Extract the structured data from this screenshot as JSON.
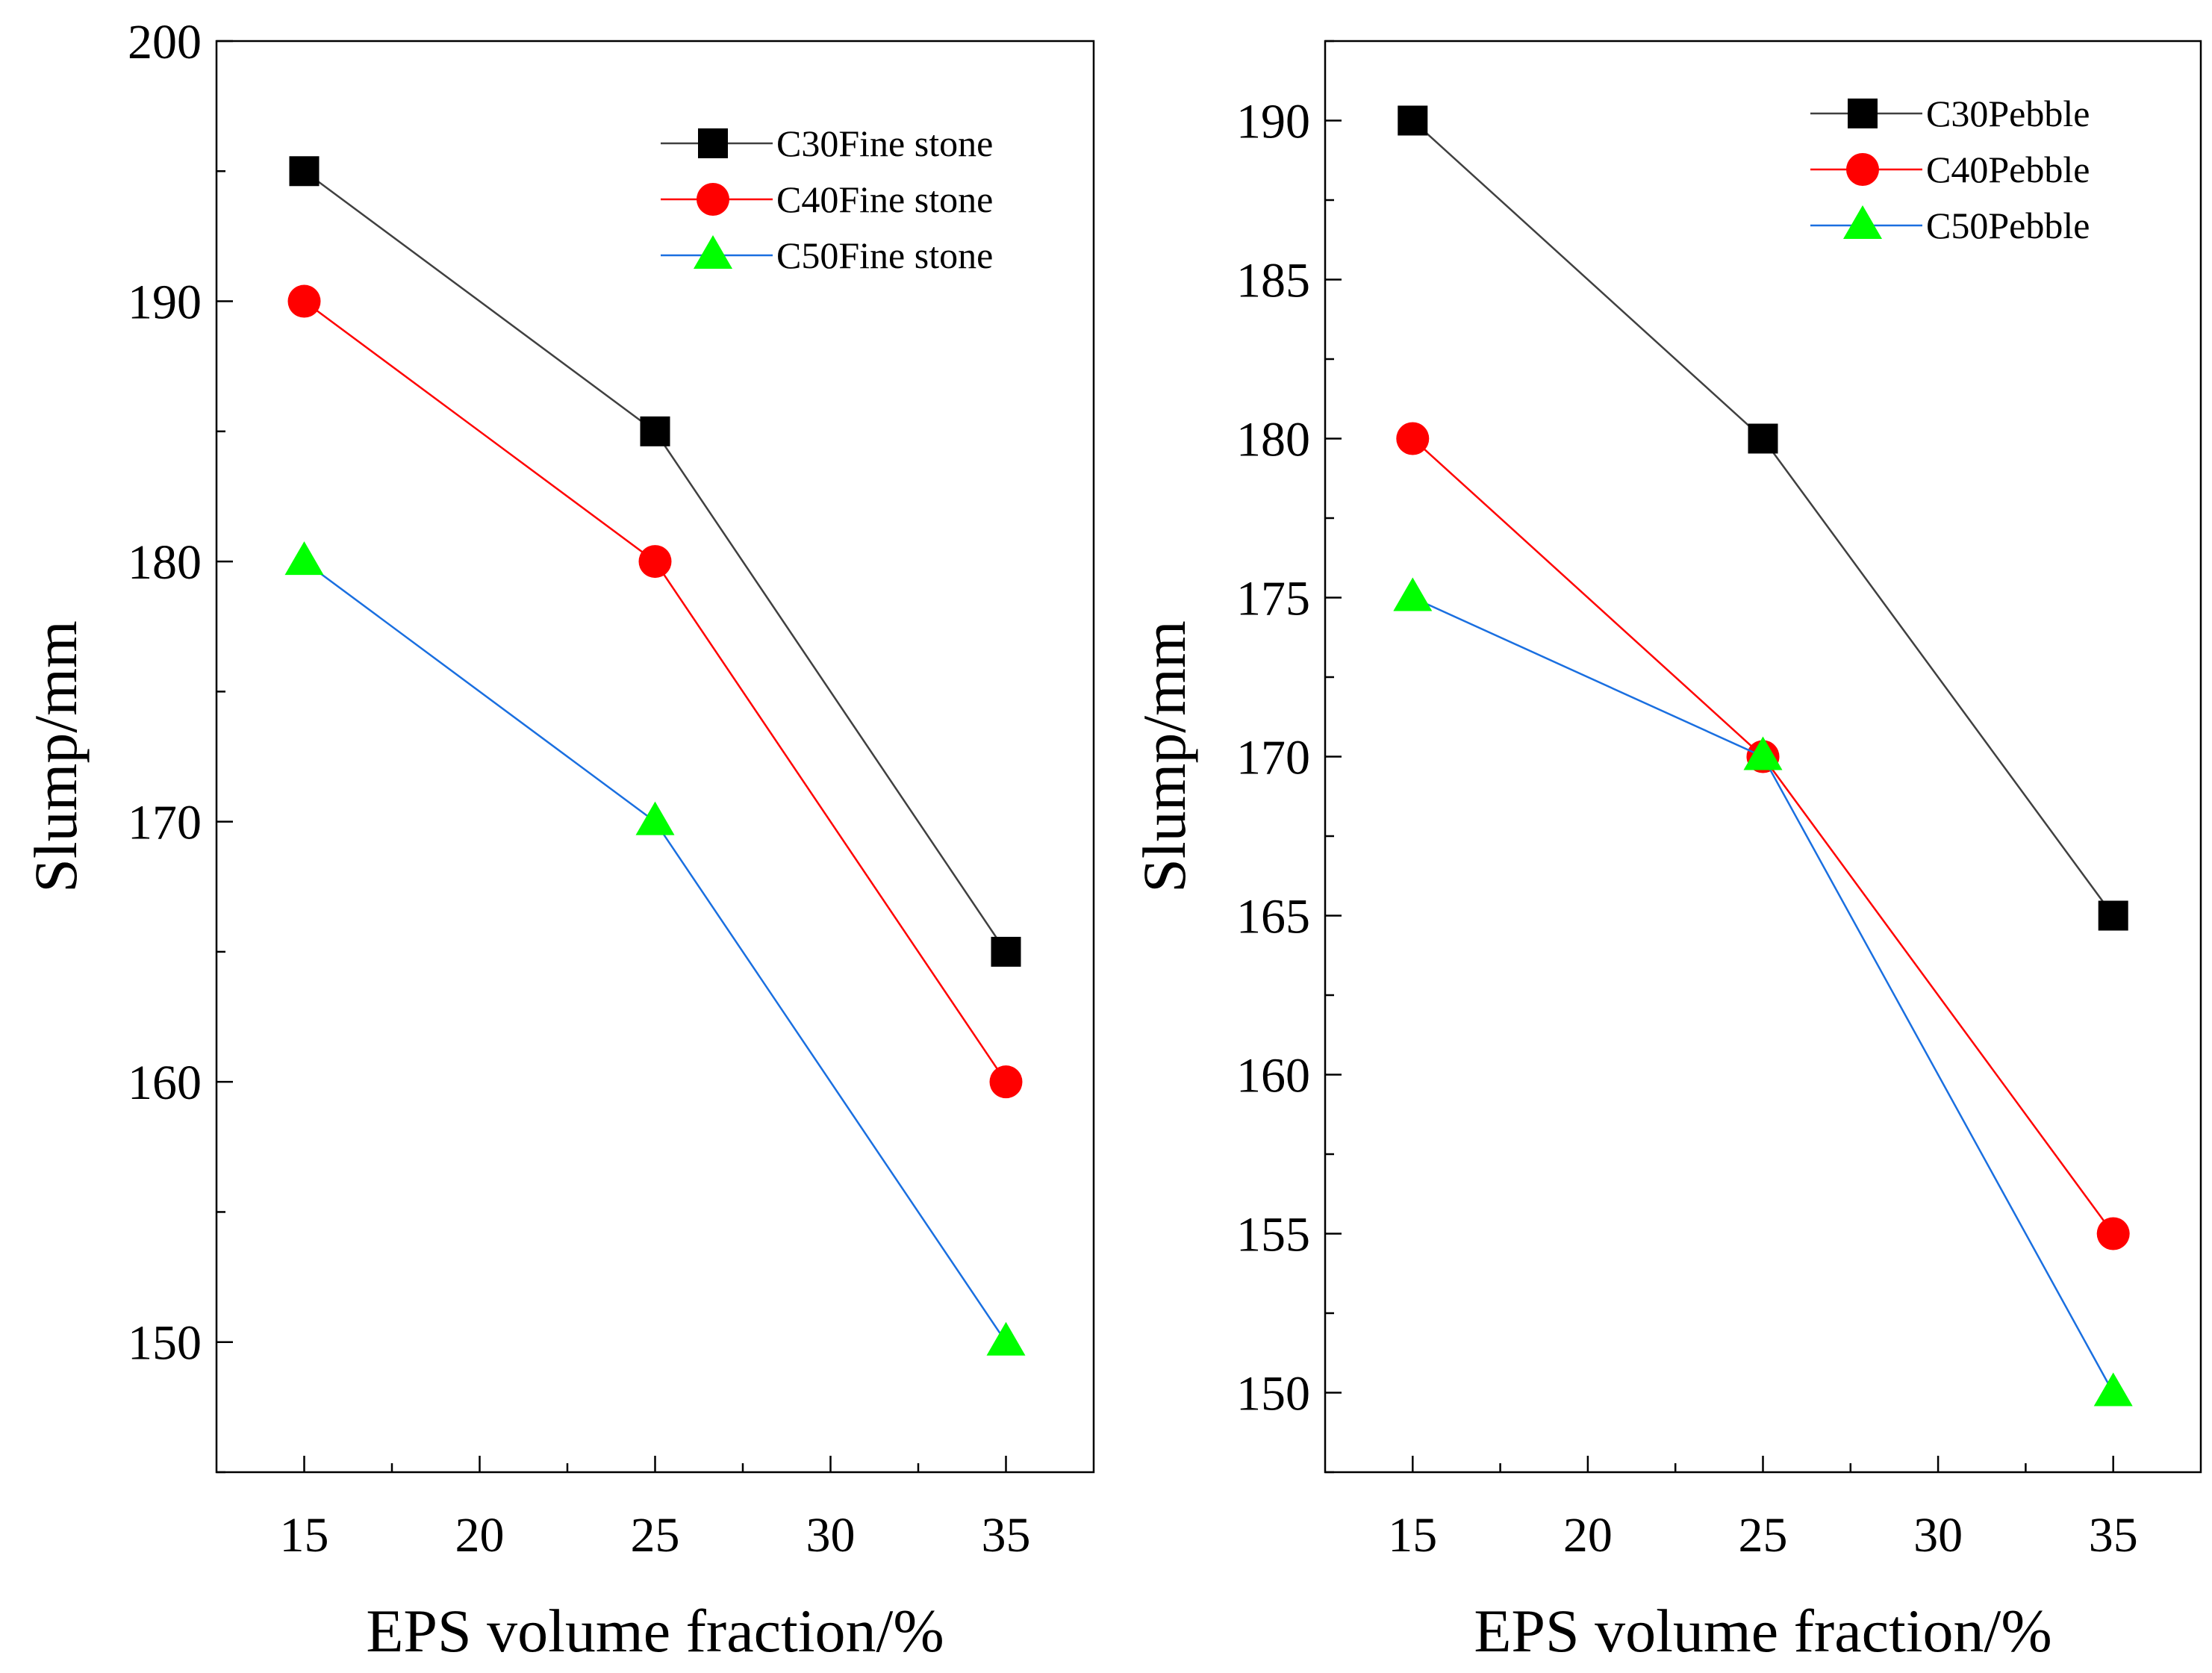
{
  "chart_data": [
    {
      "type": "line",
      "title": "",
      "xlabel": "EPS volume fraction/%",
      "ylabel": "Slump/mm",
      "x": [
        15,
        25,
        35
      ],
      "xlim": [
        12.5,
        37.5
      ],
      "ylim": [
        145,
        200
      ],
      "xticks": [
        15,
        20,
        25,
        30,
        35
      ],
      "yticks": [
        150,
        160,
        170,
        180,
        190,
        200
      ],
      "grid": false,
      "legend_position": "top-right",
      "series": [
        {
          "name": "C30Fine stone",
          "values": [
            195,
            185,
            165
          ],
          "color": "#000000",
          "line_color": "#404040",
          "marker": "square"
        },
        {
          "name": "C40Fine stone",
          "values": [
            190,
            180,
            160
          ],
          "color": "#ff0000",
          "line_color": "#ff0000",
          "marker": "circle"
        },
        {
          "name": "C50Fine stone",
          "values": [
            180,
            170,
            150
          ],
          "color": "#00ff00",
          "line_color": "#1a6fe0",
          "marker": "triangle"
        }
      ]
    },
    {
      "type": "line",
      "title": "",
      "xlabel": "EPS volume fraction/%",
      "ylabel": "Slump/mm",
      "x": [
        15,
        25,
        35
      ],
      "xlim": [
        12.5,
        37.5
      ],
      "ylim": [
        147.5,
        192.5
      ],
      "xticks": [
        15,
        20,
        25,
        30,
        35
      ],
      "yticks": [
        150,
        155,
        160,
        165,
        170,
        175,
        180,
        185,
        190
      ],
      "grid": false,
      "legend_position": "top-right",
      "series": [
        {
          "name": "C30Pebble",
          "values": [
            190,
            180,
            165
          ],
          "color": "#000000",
          "line_color": "#404040",
          "marker": "square"
        },
        {
          "name": "C40Pebble",
          "values": [
            180,
            170,
            155
          ],
          "color": "#ff0000",
          "line_color": "#ff0000",
          "marker": "circle"
        },
        {
          "name": "C50Pebble",
          "values": [
            175,
            170,
            150
          ],
          "color": "#00ff00",
          "line_color": "#1a6fe0",
          "marker": "triangle"
        }
      ]
    }
  ]
}
